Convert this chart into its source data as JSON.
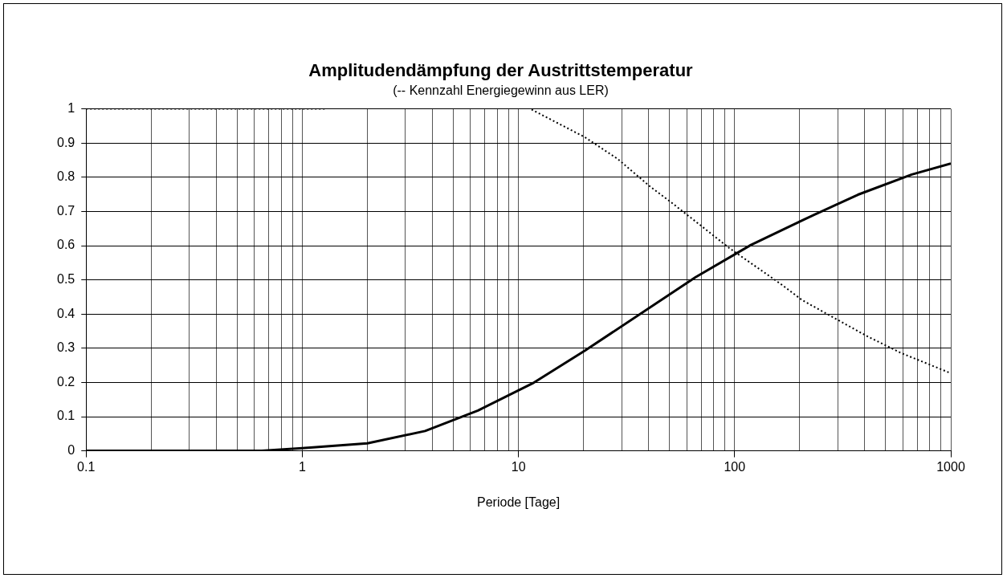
{
  "chart_data": {
    "type": "line",
    "title": "Amplitudendämpfung der Austrittstemperatur",
    "subtitle": "(-- Kennzahl Energiegewinn aus LER)",
    "xlabel": "Periode [Tage]",
    "series": [
      {
        "color": "#000000",
        "line_style": "solid",
        "x": [
          0.1,
          0.65,
          1,
          2,
          3.7,
          6.5,
          11.6,
          20.3,
          66,
          119,
          207,
          372,
          660,
          1000
        ],
        "values": [
          0,
          0,
          0.008,
          0.022,
          0.058,
          0.118,
          0.197,
          0.293,
          0.508,
          0.602,
          0.675,
          0.749,
          0.808,
          0.84
        ]
      },
      {
        "color": "#000000",
        "line_style": "dotted",
        "x": [
          0.1,
          0.8,
          1.3,
          4,
          11.5,
          20.3,
          28.7,
          41,
          52,
          70,
          94,
          165,
          205,
          408,
          589,
          1000
        ],
        "values": [
          1,
          1,
          1,
          null,
          0.998,
          0.917,
          0.854,
          0.771,
          0.722,
          0.658,
          0.594,
          0.486,
          0.441,
          0.336,
          0.286,
          0.227
        ]
      }
    ],
    "log": "x",
    "xlim": [
      0.1,
      1000
    ],
    "xticks": [
      0.1,
      {
        "value": 0.2,
        "label": null
      },
      {
        "value": 0.3,
        "label": null
      },
      {
        "value": 0.4,
        "label": null
      },
      {
        "value": 0.5,
        "label": null
      },
      {
        "value": 0.6,
        "label": null
      },
      {
        "value": 0.7,
        "label": null
      },
      {
        "value": 0.8,
        "label": null
      },
      {
        "value": 0.9,
        "label": null
      },
      1,
      {
        "value": 2,
        "label": null
      },
      {
        "value": 3,
        "label": null
      },
      {
        "value": 4,
        "label": null
      },
      {
        "value": 5,
        "label": null
      },
      {
        "value": 6,
        "label": null
      },
      {
        "value": 7,
        "label": null
      },
      {
        "value": 8,
        "label": null
      },
      {
        "value": 9,
        "label": null
      },
      10,
      {
        "value": 20,
        "label": null
      },
      {
        "value": 30,
        "label": null
      },
      {
        "value": 40,
        "label": null
      },
      {
        "value": 50,
        "label": null
      },
      {
        "value": 60,
        "label": null
      },
      {
        "value": 70,
        "label": null
      },
      {
        "value": 80,
        "label": null
      },
      {
        "value": 90,
        "label": null
      },
      100,
      {
        "value": 200,
        "label": null
      },
      {
        "value": 300,
        "label": null
      },
      {
        "value": 400,
        "label": null
      },
      {
        "value": 500,
        "label": null
      },
      {
        "value": 600,
        "label": null
      },
      {
        "value": 700,
        "label": null
      },
      {
        "value": 800,
        "label": null
      },
      {
        "value": 900,
        "label": null
      },
      1000
    ],
    "ylim": [
      0,
      1
    ],
    "yticks": [
      0,
      0.1,
      0.2,
      0.3,
      0.4,
      0.5,
      0.6,
      0.7,
      0.8,
      0.9,
      1
    ],
    "grid": true,
    "legend": false,
    "marker": "none"
  }
}
